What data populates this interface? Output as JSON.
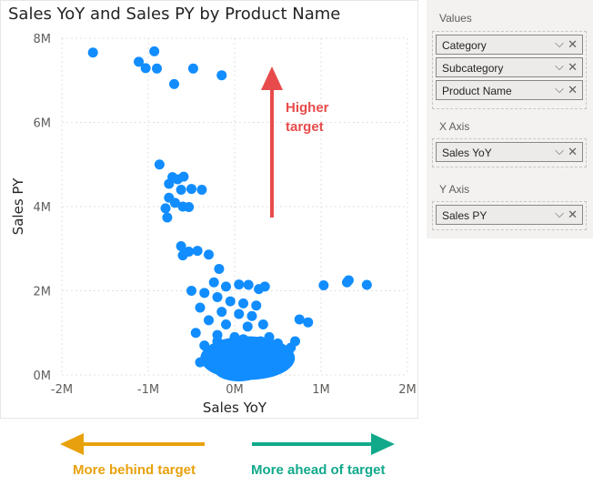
{
  "chart": {
    "title": "Sales YoY and Sales PY by Product Name",
    "higher_label_line1": "Higher",
    "higher_label_line2": "target"
  },
  "chart_data": {
    "type": "scatter",
    "title": "Sales YoY and Sales PY by Product Name",
    "xlabel": "Sales YoY",
    "ylabel": "Sales PY",
    "xlim": [
      -2000000,
      2000000
    ],
    "ylim": [
      0,
      8000000
    ],
    "x_ticks": [
      "-2M",
      "-1M",
      "0M",
      "1M",
      "2M"
    ],
    "y_ticks": [
      "0M",
      "2M",
      "4M",
      "6M",
      "8M"
    ],
    "grid": true,
    "color": "#118DFF",
    "points": [
      [
        -1640000,
        7660000
      ],
      [
        -1110000,
        7440000
      ],
      [
        -1030000,
        7290000
      ],
      [
        -930000,
        7690000
      ],
      [
        -900000,
        7280000
      ],
      [
        -480000,
        7280000
      ],
      [
        -150000,
        7120000
      ],
      [
        -700000,
        6910000
      ],
      [
        -870000,
        5000000
      ],
      [
        -720000,
        4700000
      ],
      [
        -660000,
        4650000
      ],
      [
        -590000,
        4710000
      ],
      [
        -760000,
        4540000
      ],
      [
        -620000,
        4400000
      ],
      [
        -500000,
        4420000
      ],
      [
        -380000,
        4400000
      ],
      [
        -760000,
        4210000
      ],
      [
        -690000,
        4090000
      ],
      [
        -600000,
        4000000
      ],
      [
        -530000,
        3990000
      ],
      [
        -800000,
        3960000
      ],
      [
        -780000,
        3740000
      ],
      [
        -620000,
        3060000
      ],
      [
        -530000,
        2930000
      ],
      [
        -430000,
        2950000
      ],
      [
        -300000,
        2860000
      ],
      [
        -600000,
        2840000
      ],
      [
        -180000,
        2520000
      ],
      [
        -240000,
        2200000
      ],
      [
        -100000,
        2100000
      ],
      [
        50000,
        2150000
      ],
      [
        160000,
        2140000
      ],
      [
        280000,
        2040000
      ],
      [
        350000,
        2100000
      ],
      [
        1030000,
        2130000
      ],
      [
        1300000,
        2200000
      ],
      [
        1320000,
        2250000
      ],
      [
        1530000,
        2140000
      ],
      [
        -500000,
        2000000
      ],
      [
        -350000,
        1950000
      ],
      [
        -200000,
        1850000
      ],
      [
        -50000,
        1750000
      ],
      [
        100000,
        1700000
      ],
      [
        250000,
        1650000
      ],
      [
        -400000,
        1600000
      ],
      [
        -150000,
        1500000
      ],
      [
        50000,
        1450000
      ],
      [
        200000,
        1400000
      ],
      [
        -300000,
        1300000
      ],
      [
        -100000,
        1200000
      ],
      [
        150000,
        1150000
      ],
      [
        330000,
        1200000
      ],
      [
        750000,
        1320000
      ],
      [
        850000,
        1250000
      ],
      [
        -450000,
        1000000
      ],
      [
        -200000,
        950000
      ],
      [
        0,
        900000
      ],
      [
        100000,
        850000
      ],
      [
        300000,
        800000
      ],
      [
        500000,
        750000
      ],
      [
        700000,
        800000
      ],
      [
        -350000,
        700000
      ],
      [
        -150000,
        600000
      ],
      [
        50000,
        550000
      ],
      [
        250000,
        500000
      ],
      [
        450000,
        450000
      ],
      [
        -250000,
        400000
      ],
      [
        -50000,
        350000
      ],
      [
        150000,
        300000
      ],
      [
        350000,
        280000
      ],
      [
        -150000,
        200000
      ],
      [
        0,
        150000
      ],
      [
        100000,
        120000
      ],
      [
        200000,
        180000
      ],
      [
        -50000,
        80000
      ],
      [
        50000,
        50000
      ],
      [
        -100000,
        300000
      ],
      [
        300000,
        600000
      ],
      [
        -300000,
        500000
      ],
      [
        150000,
        700000
      ],
      [
        -200000,
        800000
      ],
      [
        400000,
        900000
      ],
      [
        650000,
        650000
      ],
      [
        550000,
        350000
      ],
      [
        -400000,
        300000
      ]
    ]
  },
  "annotations": {
    "behind": {
      "label": "More behind target",
      "color": "#E8A10C"
    },
    "ahead": {
      "label": "More ahead of target",
      "color": "#12A98B"
    },
    "higher": {
      "color": "#E84B4B"
    }
  },
  "fields_pane": {
    "values_label": "Values",
    "values_fields": [
      "Category",
      "Subcategory",
      "Product Name"
    ],
    "x_axis_label": "X Axis",
    "x_axis_fields": [
      "Sales YoY"
    ],
    "y_axis_label": "Y Axis",
    "y_axis_fields": [
      "Sales PY"
    ]
  }
}
